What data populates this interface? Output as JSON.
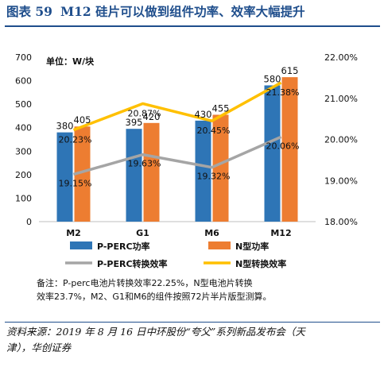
{
  "figure": {
    "number_label": "图表 59",
    "title": "M12 硅片可以做到组件功率、效率大幅提升"
  },
  "chart_data": {
    "type": "bar",
    "categories": [
      "M2",
      "G1",
      "M6",
      "M12"
    ],
    "unit_label": "单位：W/块",
    "y_left": {
      "ticks": [
        "0",
        "100",
        "200",
        "300",
        "400",
        "500",
        "600",
        "700"
      ],
      "ylim": [
        0,
        700
      ]
    },
    "y_right": {
      "ticks": [
        "18.00%",
        "19.00%",
        "20.00%",
        "21.00%",
        "22.00%"
      ],
      "ylim": [
        18.0,
        22.0
      ]
    },
    "series": [
      {
        "name": "P-PERC功率",
        "type": "bar",
        "axis": "left",
        "color": "#2e75b6",
        "values": [
          380,
          395,
          430,
          580
        ],
        "labels": [
          "380",
          "395",
          "430",
          "580"
        ]
      },
      {
        "name": "N型功率",
        "type": "bar",
        "axis": "left",
        "color": "#ed7d31",
        "values": [
          405,
          420,
          455,
          615
        ],
        "labels": [
          "405",
          "420",
          "455",
          "615"
        ]
      },
      {
        "name": "P-PERC转换效率",
        "type": "line",
        "axis": "right",
        "color": "#a5a5a5",
        "values": [
          19.15,
          19.63,
          19.32,
          20.06
        ],
        "labels": [
          "19.15%",
          "19.63%",
          "19.32%",
          "20.06%"
        ]
      },
      {
        "name": "N型转换效率",
        "type": "line",
        "axis": "right",
        "color": "#ffc000",
        "values": [
          20.23,
          20.87,
          20.45,
          21.38
        ],
        "labels": [
          "20.23%",
          "20.87%",
          "20.45%",
          "21.38%"
        ]
      }
    ],
    "grid": false,
    "legend": "bottom"
  },
  "note": {
    "line1": "备注：P-perc电池片转换效率22.25%，N型电池片转换",
    "line2": "效率23.7%，M2、G1和M6的组件按照72片半片版型测算。"
  },
  "source": {
    "line1": "资料来源：2019 年 8 月 16 日中环股份“夸父”系列新品发布会（天",
    "line2": "津），华创证券"
  }
}
